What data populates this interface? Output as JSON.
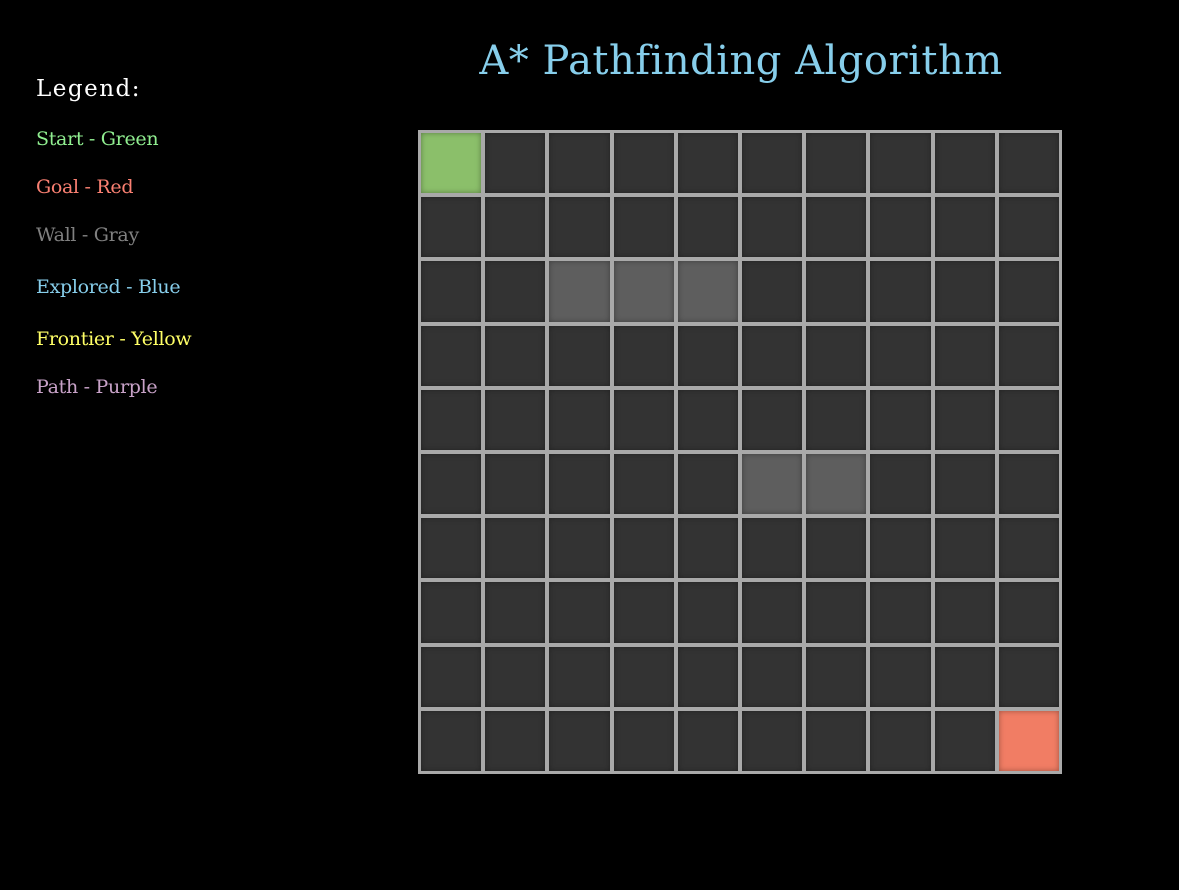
{
  "title": "A* Pathfinding Algorithm",
  "legend": {
    "heading": "Legend:",
    "items": [
      {
        "label": "Start - Green",
        "color": "#90ee90"
      },
      {
        "label": "Goal - Red",
        "color": "#fa8072"
      },
      {
        "label": "Wall - Gray",
        "color": "#808080"
      },
      {
        "label": "Explored - Blue",
        "color": "#87ceeb"
      },
      {
        "label": "Frontier - Yellow",
        "color": "#ffff66"
      },
      {
        "label": "Path - Purple",
        "color": "#c8a2c8"
      }
    ]
  },
  "grid": {
    "rows": 10,
    "cols": 10,
    "colors": {
      "empty": "#333333",
      "start": "#8bbf6a",
      "goal": "#f17d64",
      "wall": "#5e5e5e",
      "border": "#a9a9a9"
    },
    "start": {
      "row": 0,
      "col": 0
    },
    "goal": {
      "row": 9,
      "col": 9
    },
    "walls": [
      {
        "row": 2,
        "col": 2
      },
      {
        "row": 2,
        "col": 3
      },
      {
        "row": 2,
        "col": 4
      },
      {
        "row": 5,
        "col": 5
      },
      {
        "row": 5,
        "col": 6
      }
    ]
  }
}
